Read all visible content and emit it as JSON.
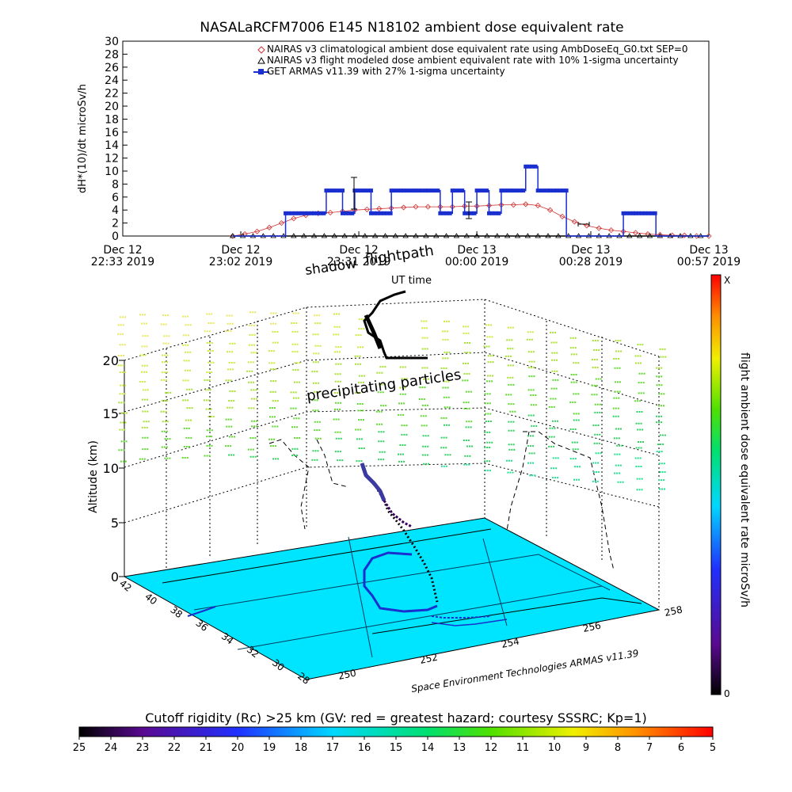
{
  "colors": {
    "nairas_clim": "#d03030",
    "nairas_flight": "#000000",
    "armas": "#1a2fd0",
    "map_fill": "#00e5ff",
    "track_cold": "#1a2fd0",
    "track_warm": "#3a0060"
  },
  "chart_data": [
    {
      "type": "line",
      "title": "NASALaRCFM7006  E145 N18102 ambient dose equivalent rate",
      "ylabel": "dH*(10)/dt microSv/h",
      "ylim": [
        0,
        30
      ],
      "yticks": [
        "0",
        "2",
        "4",
        "6",
        "8",
        "10",
        "12",
        "14",
        "16",
        "18",
        "20",
        "22",
        "24",
        "26",
        "28",
        "30"
      ],
      "xlim": [
        0,
        144
      ],
      "xticks": [
        {
          "x": 0,
          "top": "Dec 12",
          "bottom": "22:33 2019"
        },
        {
          "x": 29,
          "top": "Dec 12",
          "bottom": "23:02 2019"
        },
        {
          "x": 58,
          "top": "Dec 12",
          "bottom": "23:31 2019"
        },
        {
          "x": 87,
          "top": "Dec 13",
          "bottom": "00:00 2019"
        },
        {
          "x": 115,
          "top": "Dec 13",
          "bottom": "00:28 2019"
        },
        {
          "x": 144,
          "top": "Dec 13",
          "bottom": "00:57 2019"
        }
      ],
      "legend": [
        "NAIRAS v3 climatological ambient dose equivalent rate using AmbDoseEq_G0.txt SEP=0",
        "NAIRAS v3 flight modeled dose ambient equivalent rate with 10% 1-sigma uncertainty",
        "GET ARMAS v11.39 with 27% 1-sigma uncertainty"
      ],
      "series": [
        {
          "name": "NAIRAS v3 climatological ambient dose equivalent rate using AmbDoseEq_G0.txt SEP=0",
          "x": [
            27,
            30,
            33,
            36,
            39,
            42,
            45,
            48,
            51,
            54,
            57,
            60,
            63,
            66,
            69,
            72,
            75,
            78,
            81,
            84,
            87,
            90,
            93,
            96,
            99,
            102,
            105,
            108,
            111,
            114,
            117,
            120,
            123,
            126,
            129,
            132,
            135,
            138,
            141,
            144
          ],
          "y": [
            0,
            0.3,
            0.7,
            1.3,
            2.0,
            2.7,
            3.2,
            3.5,
            3.6,
            3.8,
            4.0,
            4.1,
            4.2,
            4.3,
            4.4,
            4.5,
            4.5,
            4.5,
            4.5,
            4.6,
            4.6,
            4.7,
            4.8,
            4.8,
            4.9,
            4.7,
            4.0,
            3.0,
            2.2,
            1.6,
            1.2,
            0.9,
            0.7,
            0.5,
            0.3,
            0.2,
            0.1,
            0.1,
            0,
            0
          ]
        },
        {
          "name": "NAIRAS v3 flight modeled dose ambient equivalent rate with 10% 1-sigma uncertainty",
          "x": [
            27,
            144
          ],
          "y": [
            0,
            0
          ]
        },
        {
          "name": "GET ARMAS v11.39 with 27% 1-sigma uncertainty",
          "x": [
            27,
            40,
            47,
            50,
            54,
            57,
            61,
            66,
            69,
            72,
            75,
            78,
            81,
            84,
            87,
            90,
            93,
            96,
            99,
            102,
            105,
            109,
            113,
            119,
            123,
            126,
            131,
            144
          ],
          "y": [
            0,
            3.5,
            3.5,
            7,
            3.5,
            7,
            3.5,
            7,
            7,
            7,
            7,
            3.5,
            7,
            3.5,
            7,
            3.5,
            7,
            7,
            10.7,
            7,
            7,
            0,
            0,
            0,
            3.5,
            3.5,
            0,
            0
          ]
        }
      ]
    },
    {
      "type": "scatter",
      "title": "",
      "xlabel": "Space Environment Technologies ARMAS v11.39",
      "ylabel": "Altitude (km)",
      "zticks": [
        "0",
        "5",
        "10",
        "15",
        "20"
      ],
      "lon_ticks": [
        "250",
        "252",
        "254",
        "256",
        "258"
      ],
      "lat_ticks": [
        "28",
        "30",
        "32",
        "34",
        "36",
        "38",
        "40",
        "42"
      ],
      "annotations": [
        "shadow",
        "flightpath",
        "UT time",
        "precipitating particles"
      ],
      "colorbar_label": "flight ambient dose equivalent rate microSv/h",
      "colorbar_max": "X",
      "colorbar_min": "0"
    }
  ],
  "rigidity_bar": {
    "label": "Cutoff rigidity (Rc) >25 km (GV: red = greatest hazard; courtesy SSSRC; Kp=1)",
    "ticks": [
      "25",
      "24",
      "23",
      "22",
      "21",
      "20",
      "19",
      "18",
      "17",
      "16",
      "15",
      "14",
      "13",
      "12",
      "11",
      "10",
      "9",
      "8",
      "7",
      "6",
      "5"
    ]
  }
}
